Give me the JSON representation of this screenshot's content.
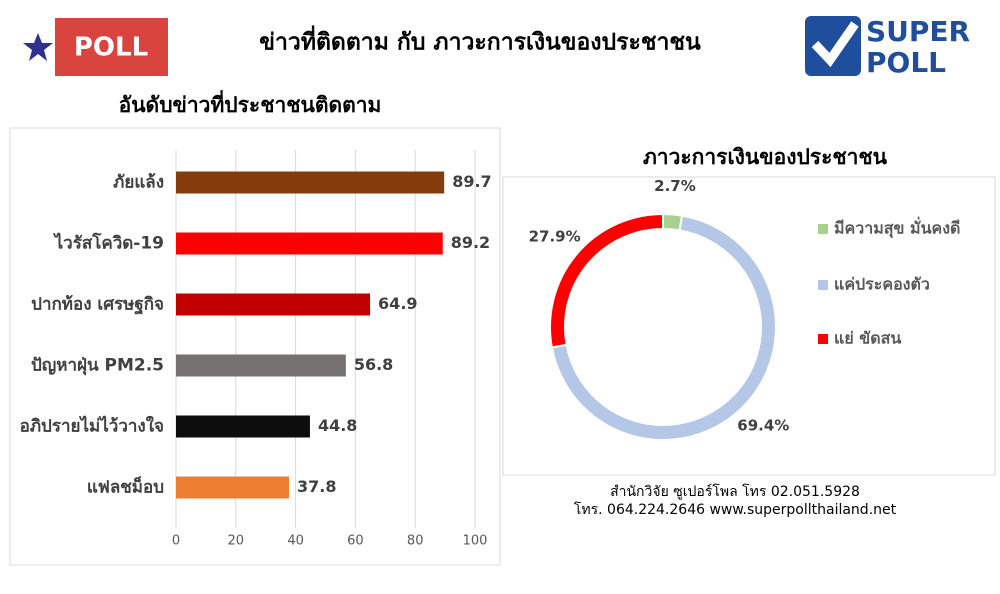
{
  "header": {
    "badge": "POLL",
    "title": "ข่าวที่ติดตาม กับ ภาวะการเงินของประชาชน",
    "logo": [
      "SUPER",
      "POLL"
    ]
  },
  "chart_data": [
    {
      "type": "bar",
      "orientation": "horizontal",
      "title": "อันดับข่าวที่ประชาชนติดตาม",
      "categories": [
        "ภัยแล้ง",
        "ไวรัสโควิด-19",
        "ปากท้อง เศรษฐกิจ",
        "ปัญหาฝุ่น PM2.5",
        "อภิปรายไม่ไว้วางใจ",
        "แฟลชม็อบ"
      ],
      "values": [
        89.7,
        89.2,
        64.9,
        56.8,
        44.8,
        37.8
      ],
      "colors": [
        "#843c0c",
        "#ff0000",
        "#c00000",
        "#767171",
        "#0d0d0d",
        "#ed7d31"
      ],
      "xlim": [
        0,
        100
      ],
      "xticks": [
        0,
        20,
        40,
        60,
        80,
        100
      ],
      "grid": true
    },
    {
      "type": "donut",
      "title": "ภาวะการเงินของประชาชน",
      "categories": [
        "มีความสุข มั่นคงดี",
        "แค่ประคองตัว",
        "แย่ ขัดสน"
      ],
      "values": [
        2.7,
        69.4,
        27.9
      ],
      "value_labels": [
        "2.7%",
        "69.4%",
        "27.9%"
      ],
      "colors": [
        "#a9d18e",
        "#b4c7e7",
        "#ff0000"
      ],
      "legend": "right"
    }
  ],
  "footer": [
    "สำนักวิจัย ซูเปอร์โพล โทร 02.051.5928",
    "โทร. 064.224.2646 www.superpollthailand.net"
  ]
}
